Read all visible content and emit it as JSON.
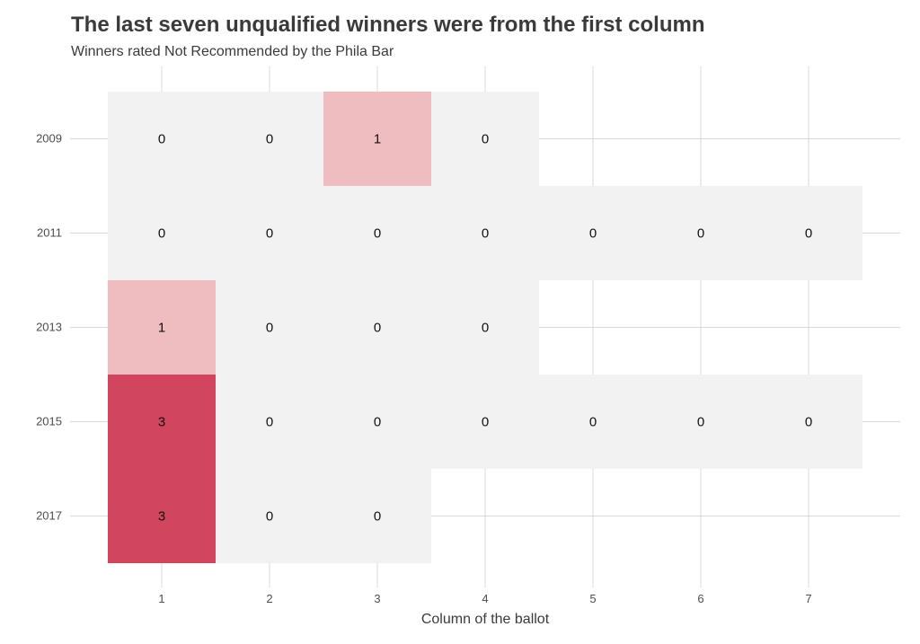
{
  "chart_data": {
    "type": "heatmap",
    "title": "The last seven unqualified winners were from the first column",
    "subtitle": "Winners rated Not Recommended by the Phila Bar",
    "xlabel": "Column of the ballot",
    "ylabel": "",
    "x_categories": [
      "1",
      "2",
      "3",
      "4",
      "5",
      "6",
      "7"
    ],
    "y_categories": [
      "2009",
      "2011",
      "2013",
      "2015",
      "2017"
    ],
    "rows": [
      {
        "year": "2009",
        "values": [
          0,
          0,
          1,
          0,
          null,
          null,
          null
        ]
      },
      {
        "year": "2011",
        "values": [
          0,
          0,
          0,
          0,
          0,
          0,
          0
        ]
      },
      {
        "year": "2013",
        "values": [
          1,
          0,
          0,
          0,
          null,
          null,
          null
        ]
      },
      {
        "year": "2015",
        "values": [
          3,
          0,
          0,
          0,
          0,
          0,
          0
        ]
      },
      {
        "year": "2017",
        "values": [
          3,
          0,
          0,
          null,
          null,
          null,
          null
        ]
      }
    ],
    "value_colors": {
      "0": "#f2f2f2",
      "1": "#efbcc0",
      "3": "#d1455e"
    },
    "grid": true,
    "legend": "none"
  }
}
